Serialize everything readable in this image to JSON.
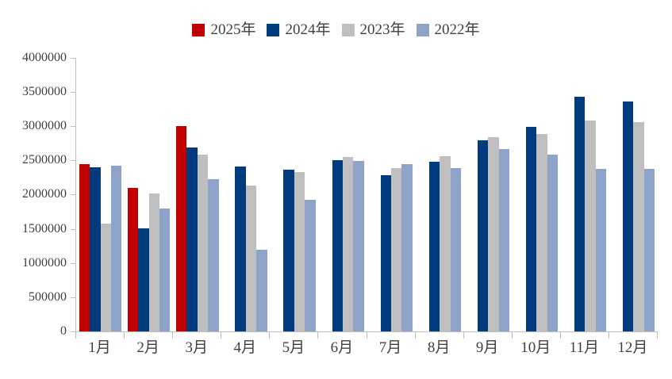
{
  "chart_data": {
    "type": "bar",
    "title": "",
    "categories": [
      "1月",
      "2月",
      "3月",
      "4月",
      "5月",
      "6月",
      "7月",
      "8月",
      "9月",
      "10月",
      "11月",
      "12月"
    ],
    "series": [
      {
        "name": "2025年",
        "color": "#C00000",
        "values": [
          2450000,
          2100000,
          3000000,
          null,
          null,
          null,
          null,
          null,
          null,
          null,
          null,
          null
        ]
      },
      {
        "name": "2024年",
        "color": "#003B7E",
        "values": [
          2400000,
          1510000,
          2690000,
          2410000,
          2370000,
          2510000,
          2280000,
          2480000,
          2800000,
          2990000,
          3430000,
          3360000
        ]
      },
      {
        "name": "2023年",
        "color": "#BFBFBF",
        "values": [
          1580000,
          2020000,
          2580000,
          2130000,
          2330000,
          2550000,
          2390000,
          2560000,
          2840000,
          2890000,
          3080000,
          3060000
        ]
      },
      {
        "name": "2022年",
        "color": "#8EA3C9",
        "values": [
          2420000,
          1800000,
          2230000,
          1200000,
          1920000,
          2490000,
          2450000,
          2390000,
          2670000,
          2590000,
          2380000,
          2380000
        ]
      }
    ],
    "ylim": [
      0,
      4000000
    ],
    "y_tick_step": 500000,
    "y_tick_labels": [
      "0",
      "500000",
      "1000000",
      "1500000",
      "2000000",
      "2500000",
      "3000000",
      "3500000",
      "4000000"
    ],
    "grid": false,
    "legend_position": "top",
    "axis_color": "#BFBFBF",
    "label_color": "#404040"
  }
}
